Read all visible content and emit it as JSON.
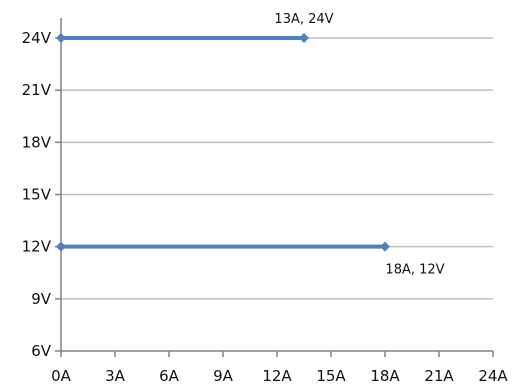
{
  "chart_data": {
    "type": "line",
    "xlim": [
      0,
      24
    ],
    "ylim": [
      6,
      24
    ],
    "x_ticks": [
      0,
      3,
      6,
      9,
      12,
      15,
      18,
      21,
      24
    ],
    "x_tick_labels": [
      "0A",
      "3A",
      "6A",
      "9A",
      "12A",
      "15A",
      "18A",
      "21A",
      "24A"
    ],
    "y_ticks": [
      6,
      9,
      12,
      15,
      18,
      21,
      24
    ],
    "y_tick_labels": [
      "6V",
      "9V",
      "12V",
      "15V",
      "18V",
      "21V",
      "24V"
    ],
    "grid": "horizontal",
    "series": [
      {
        "points": [
          [
            0,
            24
          ],
          [
            13.5,
            24
          ]
        ],
        "label": "13A, 24V"
      },
      {
        "points": [
          [
            0,
            12
          ],
          [
            18,
            12
          ]
        ],
        "label": "18A, 12V"
      }
    ],
    "series_color": "#4f81bd",
    "grid_color": "#bfbfbf",
    "axis_color": "#808080"
  }
}
